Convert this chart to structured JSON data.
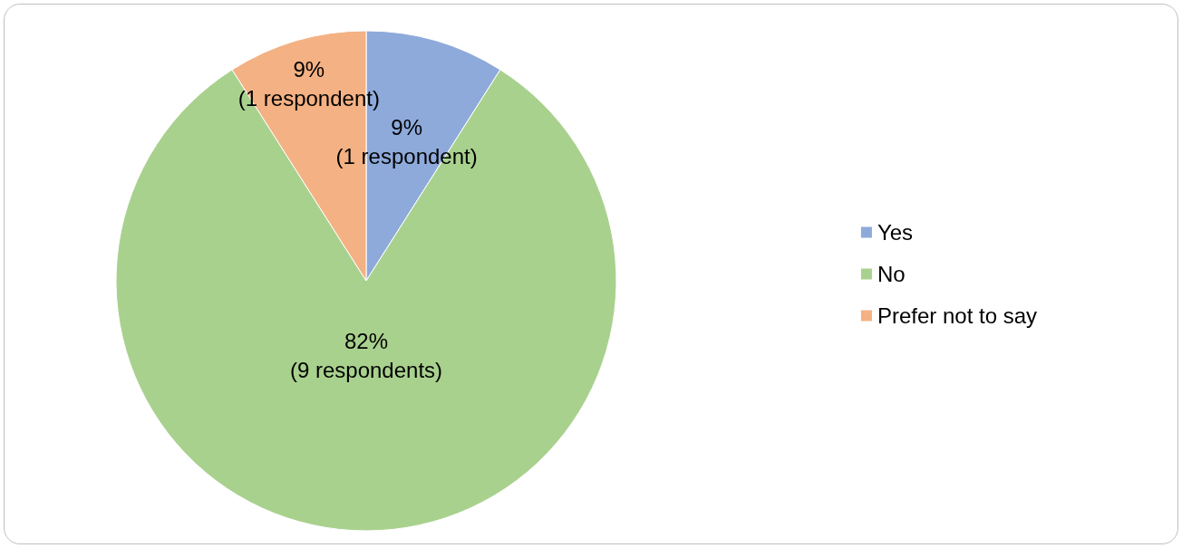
{
  "chart_data": {
    "type": "pie",
    "categories": [
      "Yes",
      "No",
      "Prefer not to say"
    ],
    "values": [
      9,
      82,
      9
    ],
    "colors": [
      "#8eaadb",
      "#a9d18e",
      "#f4b183"
    ],
    "value_labels": [
      "9%\n(1 respondent)",
      "82%\n(9 respondents)",
      "9%\n(1 respondent)"
    ],
    "legend": "right"
  }
}
